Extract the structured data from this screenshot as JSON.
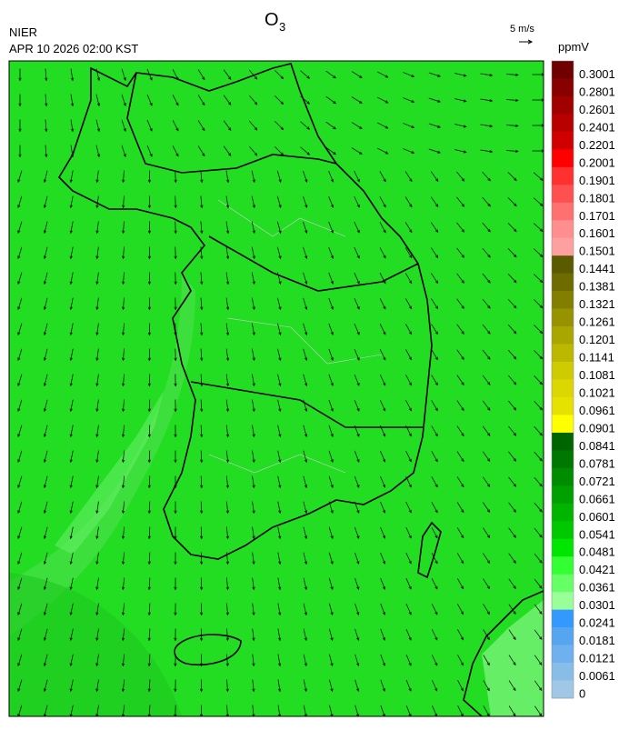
{
  "header": {
    "source": "NIER",
    "datetime": "APR 10 2026 02:00 KST",
    "title": {
      "text": "O",
      "subscript": "3"
    },
    "vector_scale": "5 m/s"
  },
  "colorbar": {
    "unit": "ppmV",
    "labels": [
      "0.3001",
      "0.2801",
      "0.2601",
      "0.2401",
      "0.2201",
      "0.2001",
      "0.1901",
      "0.1801",
      "0.1701",
      "0.1601",
      "0.1501",
      "0.1441",
      "0.1381",
      "0.1321",
      "0.1261",
      "0.1201",
      "0.1141",
      "0.1081",
      "0.1021",
      "0.0961",
      "0.0901",
      "0.0841",
      "0.0781",
      "0.0721",
      "0.0661",
      "0.0601",
      "0.0541",
      "0.0481",
      "0.0421",
      "0.0361",
      "0.0301",
      "0.0241",
      "0.0181",
      "0.0121",
      "0.0061",
      "0"
    ],
    "colors": [
      "#700000",
      "#880000",
      "#a00000",
      "#b80000",
      "#d00000",
      "#ff0000",
      "#ff3030",
      "#ff5050",
      "#ff7070",
      "#ff8f8f",
      "#ffa0a0",
      "#5a5a00",
      "#6e6c00",
      "#827f00",
      "#969200",
      "#aaa600",
      "#bcb800",
      "#cfcb00",
      "#dcd700",
      "#e6e100",
      "#ffff00",
      "#006400",
      "#007800",
      "#008c00",
      "#00a000",
      "#00b400",
      "#00c800",
      "#00e600",
      "#33ff33",
      "#66ff66",
      "#99ff99",
      "#3399ff",
      "#55a5f0",
      "#6eb1ee",
      "#88bde8",
      "#a0c8e6"
    ]
  }
}
